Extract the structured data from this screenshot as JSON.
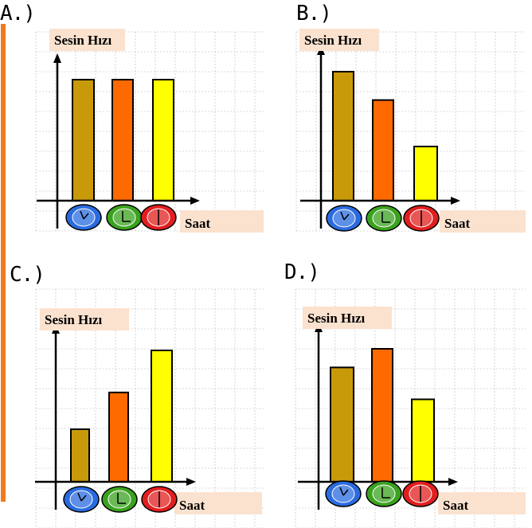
{
  "colors": {
    "bar1": "#c89a0a",
    "bar2": "#ff6a00",
    "bar3": "#ffff00",
    "clock1": "#2a6be0",
    "clock2": "#3aa21e",
    "clock3": "#e21e1e",
    "label_bg": "#fbe2cf",
    "grid": "#b7b7b7"
  },
  "chart_data": [
    {
      "panel": "A.)",
      "type": "bar",
      "ylabel": "Sesin Hızı",
      "xlabel": "Saat",
      "categories": [
        "blue-clock",
        "green-clock",
        "red-clock"
      ],
      "values": [
        5,
        5,
        5
      ],
      "ylim": [
        0,
        6
      ]
    },
    {
      "panel": "B.)",
      "type": "bar",
      "ylabel": "Sesin Hızı",
      "xlabel": "Saat",
      "categories": [
        "blue-clock",
        "green-clock",
        "red-clock"
      ],
      "values": [
        5,
        3.9,
        2.1
      ],
      "ylim": [
        0,
        6
      ]
    },
    {
      "panel": "C.)",
      "type": "bar",
      "ylabel": "Sesin Hızı",
      "xlabel": "Saat",
      "categories": [
        "blue-clock",
        "green-clock",
        "red-clock"
      ],
      "values": [
        2,
        3.4,
        5
      ],
      "ylim": [
        0,
        6
      ]
    },
    {
      "panel": "D.)",
      "type": "bar",
      "ylabel": "Sesin Hızı",
      "xlabel": "Saat",
      "categories": [
        "blue-clock",
        "green-clock",
        "red-clock"
      ],
      "values": [
        4.3,
        5,
        3.1
      ],
      "ylim": [
        0,
        6
      ]
    }
  ]
}
